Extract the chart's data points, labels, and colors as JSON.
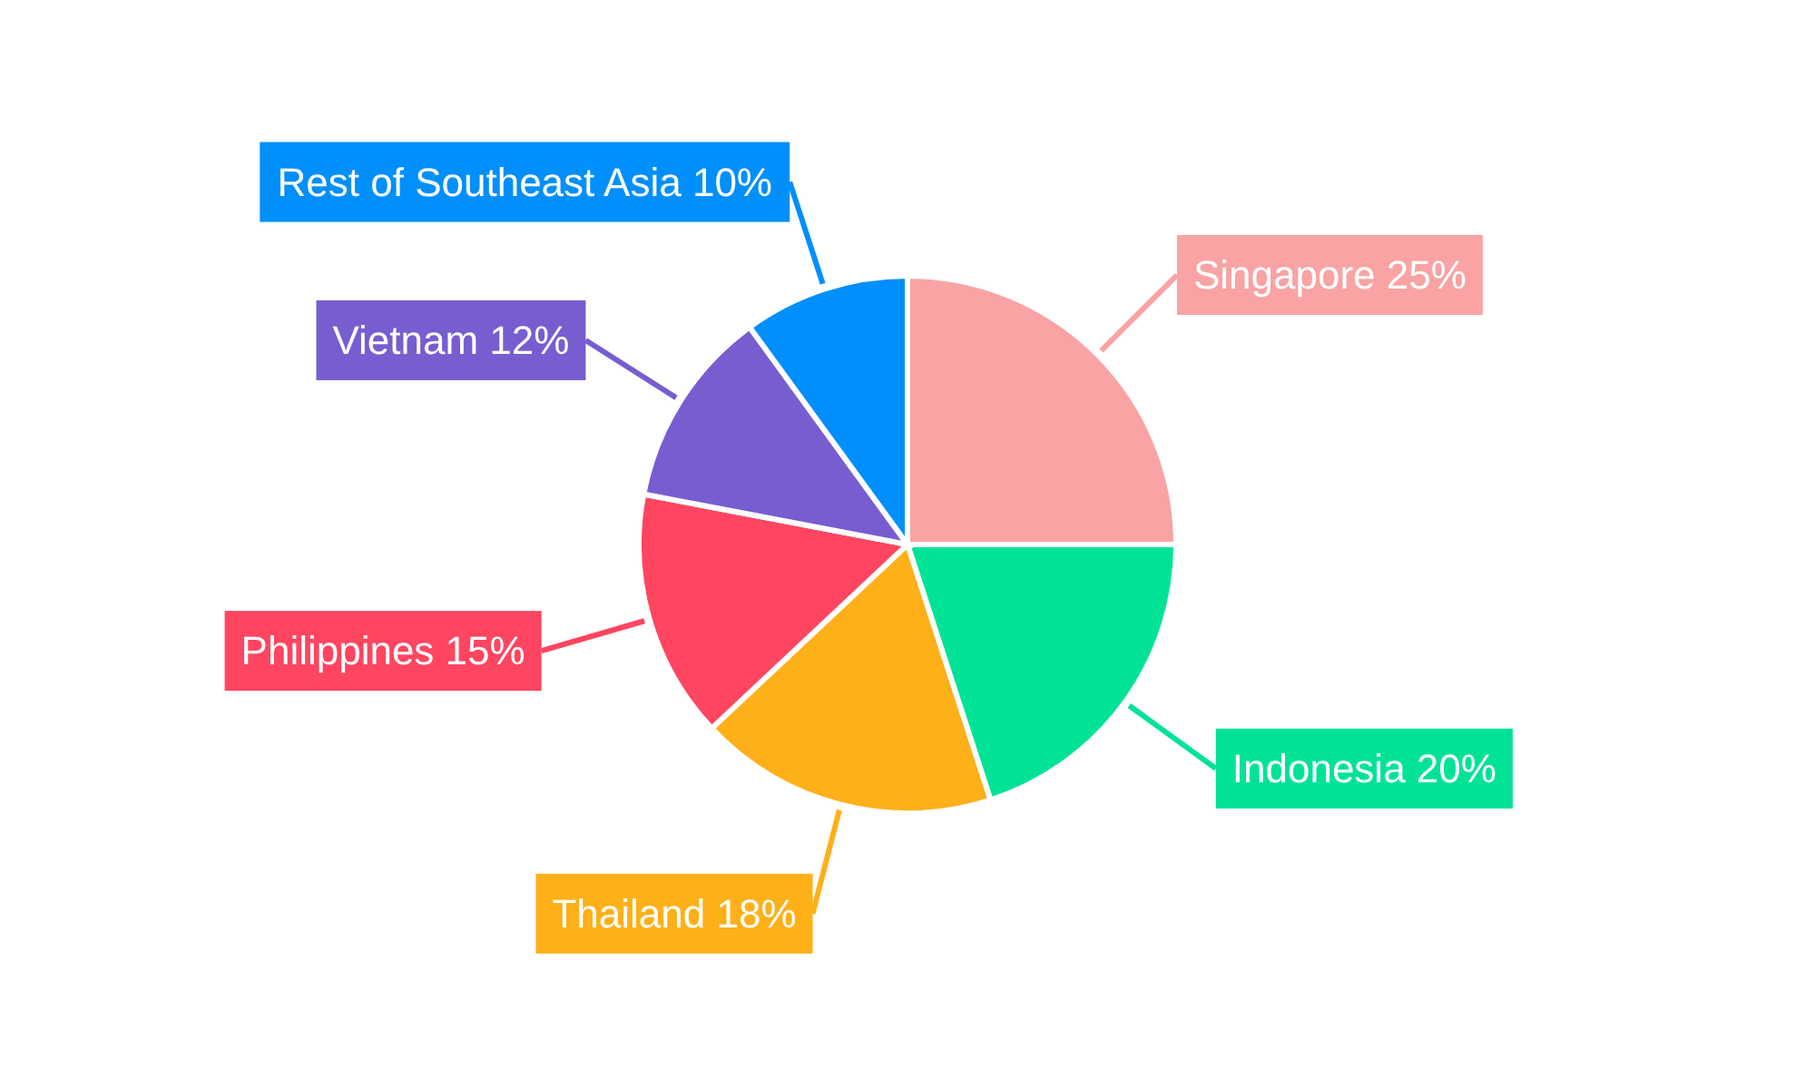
{
  "chart_data": {
    "type": "pie",
    "categories": [
      "Singapore",
      "Indonesia",
      "Thailand",
      "Philippines",
      "Vietnam",
      "Rest of Southeast Asia"
    ],
    "values": [
      25,
      20,
      18,
      15,
      12,
      10
    ],
    "colors": [
      "#f9a3a4",
      "#00e396",
      "#feb019",
      "#ff4560",
      "#775dd0",
      "#008ffb"
    ],
    "value_labels": [
      "25%",
      "20%",
      "18%",
      "15%",
      "12%",
      "10%"
    ]
  }
}
